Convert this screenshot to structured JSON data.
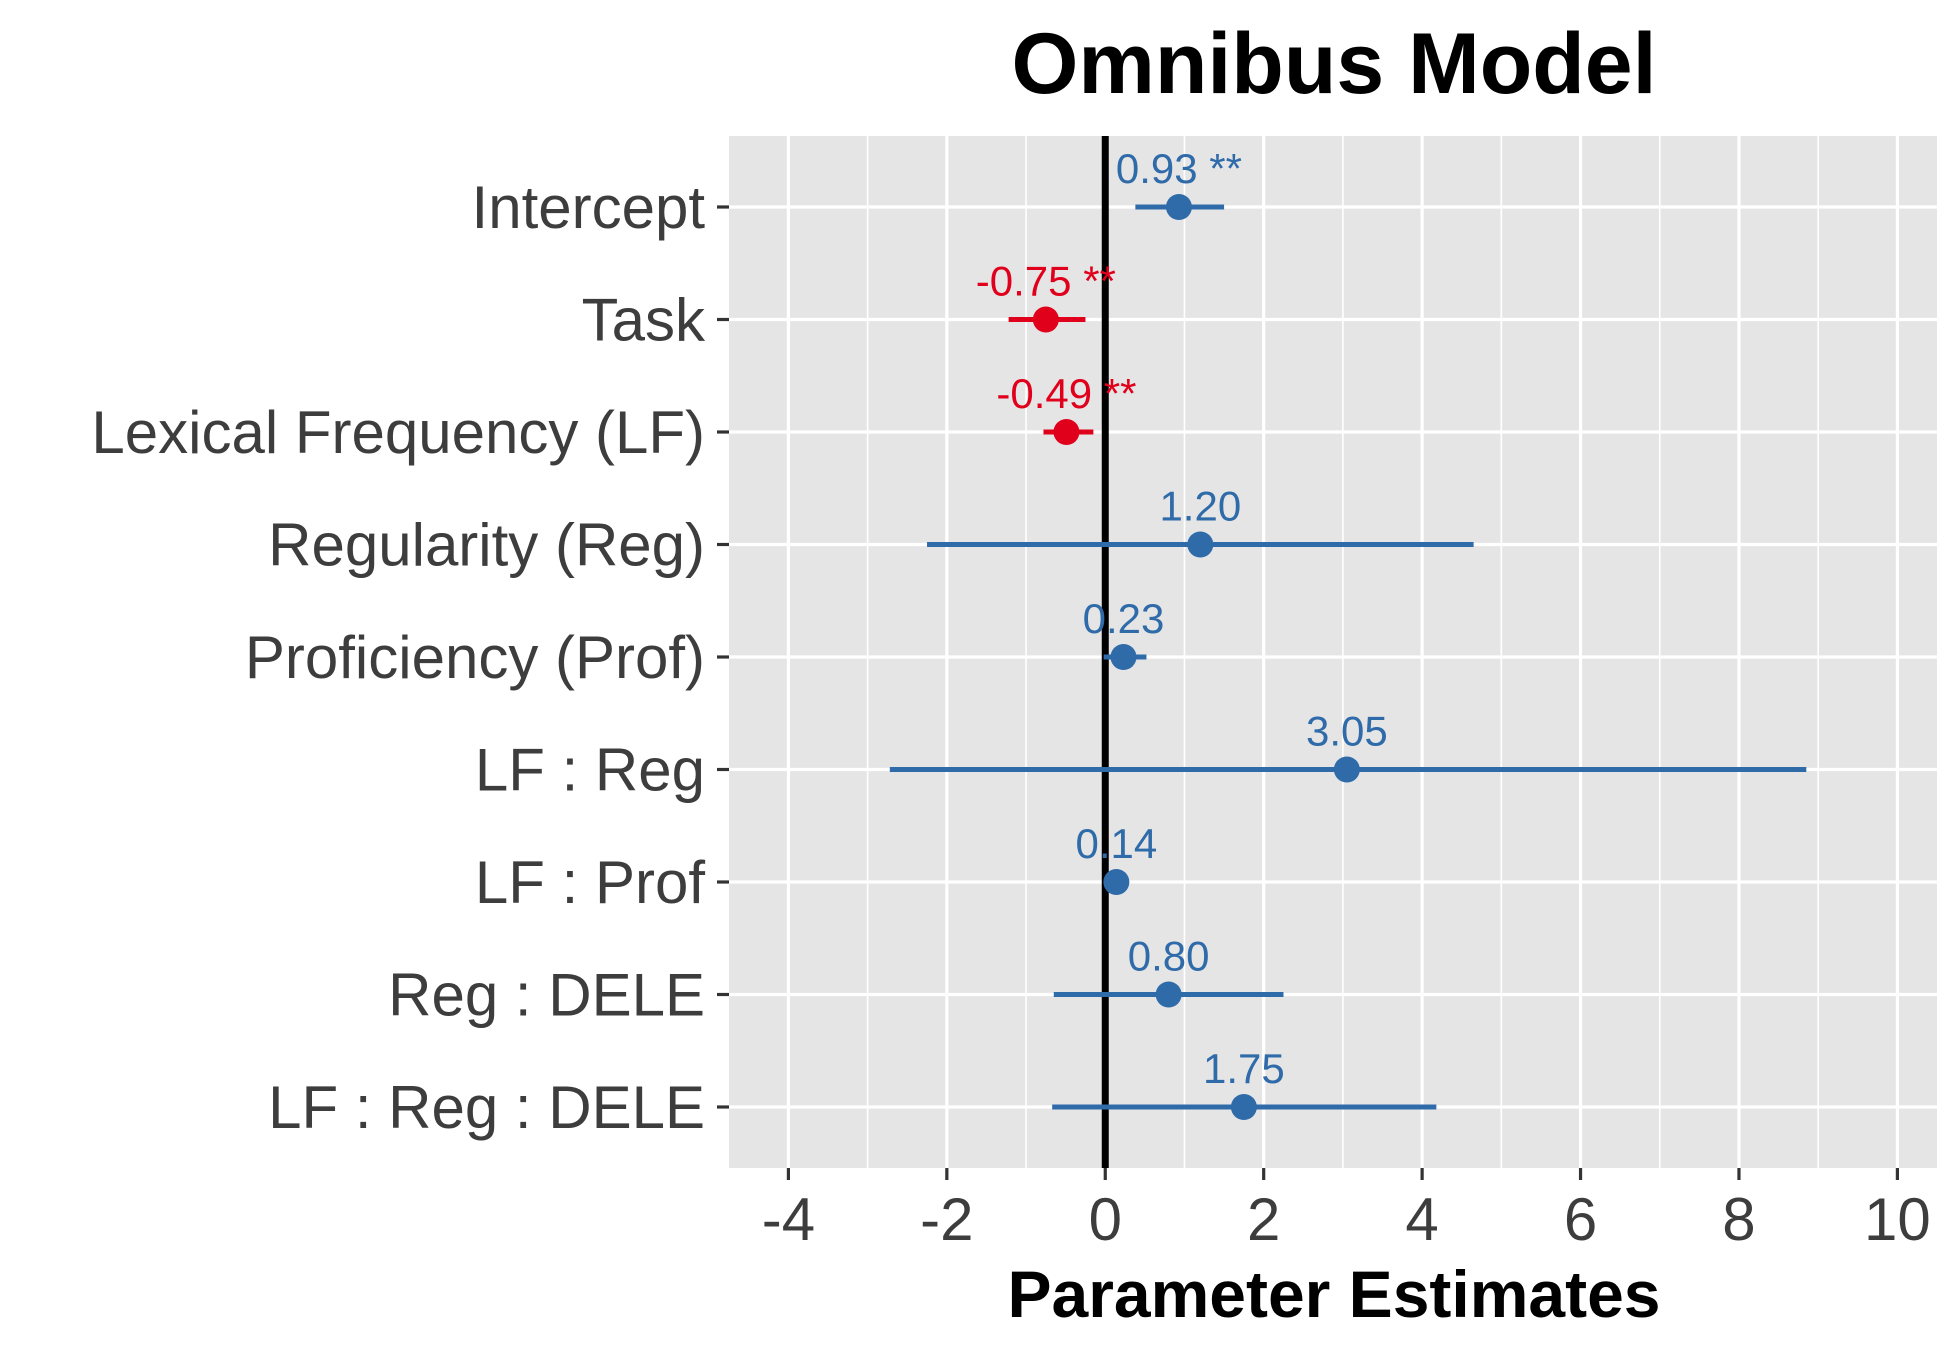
{
  "chart_data": {
    "type": "scatter",
    "title": "Omnibus Model",
    "xlabel": "Parameter Estimates",
    "ylabel": "",
    "xlim": [
      -4.75,
      10.5
    ],
    "xticks": [
      -4,
      -2,
      0,
      2,
      4,
      6,
      8,
      10
    ],
    "xtick_labels": [
      "-4",
      "-2",
      "0",
      "2",
      "4",
      "6",
      "8",
      "10"
    ],
    "reference_line": 0,
    "grid": true,
    "colors": {
      "positive": "#2f6aa9",
      "negative": "#e0001b",
      "panel": "#e5e5e5",
      "grid": "#ffffff",
      "refline": "#000000"
    },
    "categories": [
      "Intercept",
      "Task",
      "Lexical Frequency (LF)",
      "Regularity (Reg)",
      "Proficiency (Prof)",
      "LF : Reg",
      "LF : Prof",
      "Reg : DELE",
      "LF : Reg : DELE"
    ],
    "estimates": [
      0.93,
      -0.75,
      -0.49,
      1.2,
      0.23,
      3.05,
      0.14,
      0.8,
      1.75
    ],
    "ci_low": [
      0.38,
      -1.22,
      -0.78,
      -2.25,
      -0.02,
      -2.72,
      0.02,
      -0.65,
      -0.67
    ],
    "ci_high": [
      1.5,
      -0.25,
      -0.15,
      4.65,
      0.52,
      8.85,
      0.26,
      2.25,
      4.18
    ],
    "labels": [
      "0.93 **",
      "-0.75 **",
      "-0.49 **",
      "1.20",
      "0.23",
      "3.05",
      "0.14",
      "0.80",
      "1.75"
    ]
  }
}
